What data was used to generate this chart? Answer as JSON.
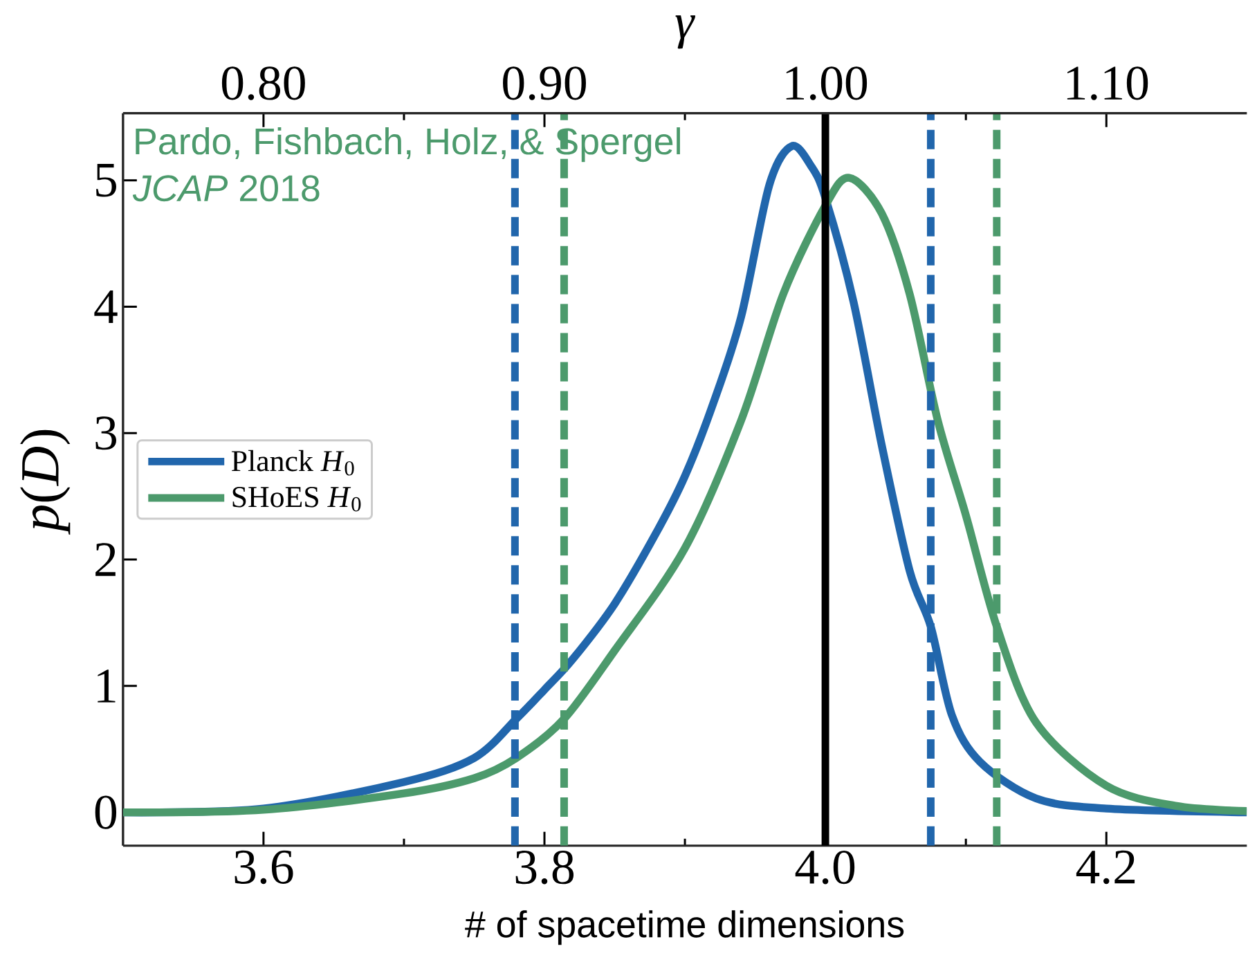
{
  "chart_data": {
    "type": "line",
    "xlabel": "# of spacetime dimensions",
    "ylabel": "*p*(*D*)",
    "x2label": "*γ*",
    "xlim": [
      3.5,
      4.3
    ],
    "ylim": [
      -0.264,
      5.53
    ],
    "x2lim": [
      0.75,
      1.15
    ],
    "xticks": [
      3.6,
      3.8,
      {
        "value": 4.0,
        "label": "4.0"
      },
      4.2
    ],
    "yticks": [
      0,
      1,
      2,
      3,
      4,
      5
    ],
    "x2ticks": [
      {
        "value": 0.8,
        "label": "0.80"
      },
      {
        "value": 0.9,
        "label": "0.90"
      },
      {
        "value": 1.0,
        "label": "1.00"
      },
      {
        "value": 1.1,
        "label": "1.10"
      }
    ],
    "legend": "left",
    "marker": "none",
    "line_style": "solid",
    "annotations": [
      "Pardo, Fishbach, Holz, & Spergel",
      "*JCAP* 2018"
    ],
    "series": [
      {
        "name": "Planck *H*$_{0}$",
        "color": "#2166ac",
        "x": [
          3.5,
          3.6,
          3.7,
          3.75,
          3.78,
          3.8,
          3.82,
          3.85,
          3.88,
          3.9,
          3.92,
          3.94,
          3.96,
          3.976,
          3.99,
          4.0,
          4.02,
          4.04,
          4.06,
          4.075,
          4.09,
          4.11,
          4.15,
          4.2,
          4.3
        ],
        "values": [
          0.0,
          0.03,
          0.24,
          0.43,
          0.74,
          0.97,
          1.21,
          1.65,
          2.22,
          2.66,
          3.23,
          3.92,
          4.96,
          5.27,
          5.11,
          4.86,
          4.04,
          2.91,
          1.91,
          1.47,
          0.77,
          0.4,
          0.11,
          0.03,
          0.0
        ]
      },
      {
        "name": "SHoES *H*$_{0}$",
        "color": "#4c9a6c",
        "x": [
          3.5,
          3.6,
          3.7,
          3.75,
          3.78,
          3.814,
          3.85,
          3.9,
          3.94,
          3.97,
          4.0,
          4.017,
          4.04,
          4.06,
          4.08,
          4.1,
          4.122,
          4.15,
          4.2,
          4.25,
          4.3
        ],
        "values": [
          0.0,
          0.02,
          0.15,
          0.27,
          0.43,
          0.74,
          1.28,
          2.09,
          3.1,
          4.1,
          4.8,
          5.02,
          4.74,
          4.1,
          3.1,
          2.35,
          1.47,
          0.71,
          0.21,
          0.05,
          0.01
        ]
      }
    ],
    "ref_lines": [
      {
        "axis": "x",
        "value": 3.779,
        "color": "#2166ac",
        "line_style": "dashed"
      },
      {
        "axis": "x",
        "value": 3.814,
        "color": "#4c9a6c",
        "line_style": "dashed"
      },
      {
        "axis": "x",
        "value": 4.075,
        "color": "#2166ac",
        "line_style": "dashed"
      },
      {
        "axis": "x",
        "value": 4.122,
        "color": "#4c9a6c",
        "line_style": "dashed"
      },
      {
        "axis": "x",
        "value": 4.0,
        "color": "#000000",
        "line_style": "solid"
      }
    ]
  }
}
